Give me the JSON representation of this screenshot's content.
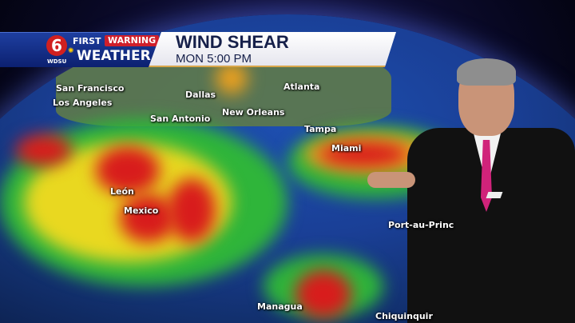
{
  "banner": {
    "logo_number": "6",
    "first": "FIRST",
    "warning": "WARNING",
    "station": "WDSU",
    "weather": "WEATHER",
    "title": "WIND SHEAR",
    "subtitle": "MON 5:00 PM"
  },
  "map": {
    "cities": [
      "San Francisco",
      "Los Angeles",
      "Dallas",
      "Atlanta",
      "San Antonio",
      "New Orleans",
      "Tampa",
      "Miami",
      "León",
      "Mexico",
      "Port-au-Princ",
      "Managua",
      "Chiquinquir"
    ],
    "colors": {
      "ocean": "#1d4fb0",
      "low_shear": "#2fb53a",
      "mid_shear": "#f2e11d",
      "high_shear": "#d81c1c",
      "land": "#5f7a4a"
    }
  }
}
